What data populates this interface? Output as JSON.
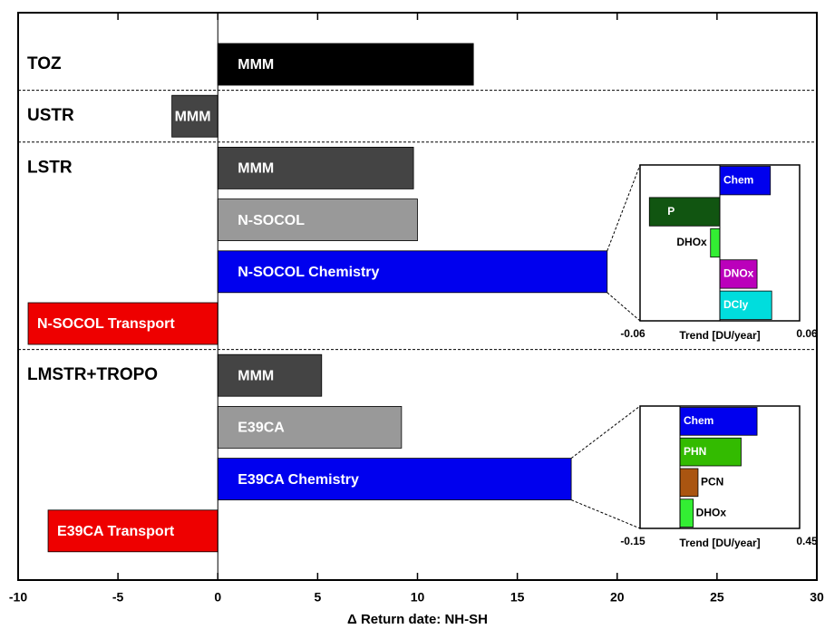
{
  "chart_data": {
    "type": "bar",
    "xlabel": "Δ Return date: NH-SH",
    "xlim": [
      -10,
      30
    ],
    "xticks": [
      -10,
      -5,
      0,
      5,
      10,
      15,
      20,
      25,
      30
    ],
    "groups": [
      {
        "name": "TOZ",
        "bars": [
          {
            "label": "MMM",
            "value": 12.8,
            "color": "#000000"
          }
        ]
      },
      {
        "name": "USTR",
        "bars": [
          {
            "label": "MMM",
            "value": -2.3,
            "color": "#444444"
          }
        ]
      },
      {
        "name": "LSTR",
        "bars": [
          {
            "label": "MMM",
            "value": 9.8,
            "color": "#444444"
          },
          {
            "label": "N-SOCOL",
            "value": 10.0,
            "color": "#999999"
          },
          {
            "label": "N-SOCOL Chemistry",
            "value": 19.5,
            "color": "#0000ee"
          },
          {
            "label": "N-SOCOL Transport",
            "value": -9.5,
            "color": "#ee0000"
          }
        ]
      },
      {
        "name": "LMSTR+TROPO",
        "bars": [
          {
            "label": "MMM",
            "value": 5.2,
            "color": "#444444"
          },
          {
            "label": "E39CA",
            "value": 9.2,
            "color": "#999999"
          },
          {
            "label": "E39CA Chemistry",
            "value": 17.7,
            "color": "#0000ee"
          },
          {
            "label": "E39CA Transport",
            "value": -8.5,
            "color": "#ee0000"
          }
        ]
      }
    ],
    "insets": [
      {
        "type": "bar",
        "xlabel": "Trend [DU/year]",
        "xlim": [
          -0.06,
          0.06
        ],
        "xticks": [
          -0.06,
          0.06
        ],
        "categories": [
          "Chem",
          "P",
          "DHOx",
          "DNOx",
          "DCly"
        ],
        "values": [
          0.038,
          -0.053,
          -0.007,
          0.028,
          0.039
        ],
        "colors": [
          "#0000ee",
          "#115511",
          "#33ee33",
          "#bb00bb",
          "#00dddd"
        ]
      },
      {
        "type": "bar",
        "xlabel": "Trend [DU/year]",
        "xlim": [
          -0.15,
          0.45
        ],
        "xticks": [
          -0.15,
          0.45
        ],
        "categories": [
          "Chem",
          "PHN",
          "PCN",
          "DHOx"
        ],
        "values": [
          0.29,
          0.23,
          0.068,
          0.05
        ],
        "colors": [
          "#0000ee",
          "#33bb00",
          "#aa5511",
          "#33ee33"
        ]
      }
    ]
  }
}
